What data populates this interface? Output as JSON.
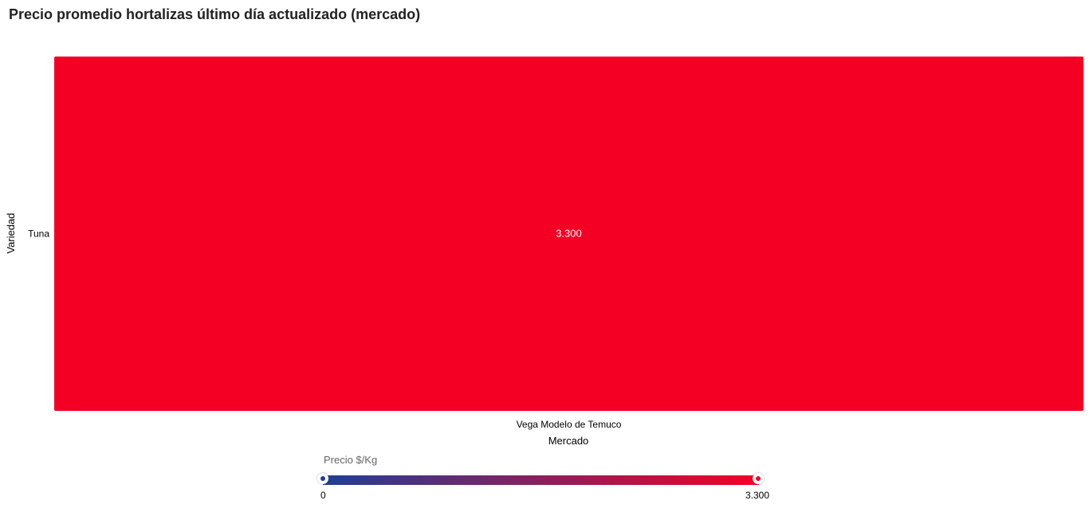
{
  "chart_data": {
    "type": "heatmap",
    "title": "Precio promedio hortalizas último día actualizado (mercado)",
    "xlabel": "Mercado",
    "ylabel": "Variedad",
    "x_categories": [
      "Vega Modelo de Temuco"
    ],
    "y_categories": [
      "Tuna"
    ],
    "cells": [
      {
        "x": "Vega Modelo de Temuco",
        "y": "Tuna",
        "value": 3300,
        "label": "3.300"
      }
    ],
    "colorscale": {
      "title": "Precio $/Kg",
      "min": 0,
      "max": 3300,
      "min_label": "0",
      "max_label": "3.300",
      "min_color": "#1f3f94",
      "max_color": "#f50025"
    },
    "legend_placement": "bottom-center"
  }
}
